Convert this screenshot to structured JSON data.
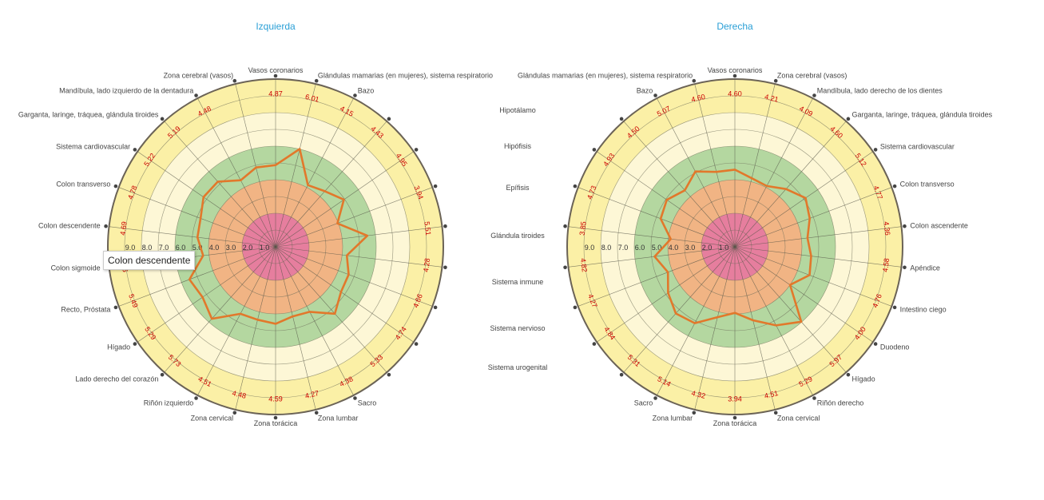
{
  "colors": {
    "title": "#2a9fd6",
    "line": "#e2782b",
    "value_label": "#cc0000",
    "zone_red": "#e67e9e",
    "zone_orange": "#f1b484",
    "zone_green": "#b4d7a0",
    "zone_cream": "#fdf7d6",
    "zone_yellow": "#fbf0a6"
  },
  "ring_ticks": [
    "1.0",
    "2.0",
    "3.0",
    "4.0",
    "5.0",
    "6.0",
    "7.0",
    "8.0",
    "9.0"
  ],
  "middle_labels": [
    "Hipotálamo",
    "Hipófisis",
    "Epífisis",
    "Glándula tiroides",
    "Sistema inmune",
    "Sistema nervioso",
    "Sistema urogenital"
  ],
  "tooltip": "Colon descendente",
  "chart_data": [
    {
      "type": "radar",
      "title": "Izquierda",
      "categories": [
        "Vasos coronarios",
        "Glándulas mamarias (en mujeres), sistema respiratorio",
        "Bazo",
        "",
        "",
        "",
        "",
        "",
        "",
        "",
        "",
        "Sacro",
        "Zona lumbar",
        "Zona torácica",
        "Zona cervical",
        "Riñón izquierdo",
        "Lado derecho del corazón",
        "Hígado",
        "Recto, Próstata",
        "Colon sigmoide",
        "Colon descendente",
        "Colon transverso",
        "Sistema cardiovascular",
        "Garganta, laringe, tráquea, glándula tiroides",
        "Mandíbula, lado izquierdo de la dentadura",
        "Zona cerebral (vasos)"
      ],
      "values": [
        4.87,
        6.01,
        4.15,
        4.43,
        4.95,
        3.94,
        5.51,
        4.28,
        4.66,
        4.74,
        5.33,
        4.38,
        4.27,
        4.59,
        4.48,
        4.51,
        5.73,
        5.29,
        5.49,
        4.35,
        4.69,
        4.78,
        5.22,
        5.19,
        4.48,
        4.87
      ],
      "series_values_shown": [
        4.87,
        6.01,
        4.15,
        4.43,
        4.95,
        3.94,
        5.51,
        4.28,
        4.66,
        4.74,
        5.33,
        4.38,
        4.27,
        4.59,
        4.48,
        4.51,
        5.73,
        5.29,
        5.49,
        4.35,
        4.69,
        4.78,
        5.22,
        5.19,
        4.48
      ],
      "rlim": [
        0,
        10
      ]
    },
    {
      "type": "radar",
      "title": "Derecha",
      "categories": [
        "Vasos coronarios",
        "Zona cerebral (vasos)",
        "Mandíbula, lado derecho de los dientes",
        "Garganta, laringe, tráquea, glándula tiroides",
        "Sistema cardiovascular",
        "Colon transverso",
        "Colon ascendente",
        "Apéndice",
        "Intestino ciego",
        "Duodeno",
        "Hígado",
        "Riñón derecho",
        "Zona cervical",
        "Zona torácica",
        "Zona lumbar",
        "Sacro",
        "",
        "",
        "",
        "",
        "",
        "",
        "",
        "",
        "Bazo",
        "Glándulas mamarias (en mujeres), sistema respiratorio"
      ],
      "values": [
        4.6,
        4.21,
        4.09,
        4.6,
        5.12,
        4.77,
        4.36,
        4.58,
        4.76,
        4.0,
        5.97,
        5.29,
        4.51,
        3.94,
        4.32,
        5.14,
        5.31,
        4.84,
        4.27,
        4.82,
        3.85,
        4.73,
        4.93,
        4.5,
        5.07,
        4.6
      ],
      "rlim": [
        0,
        10
      ]
    }
  ]
}
